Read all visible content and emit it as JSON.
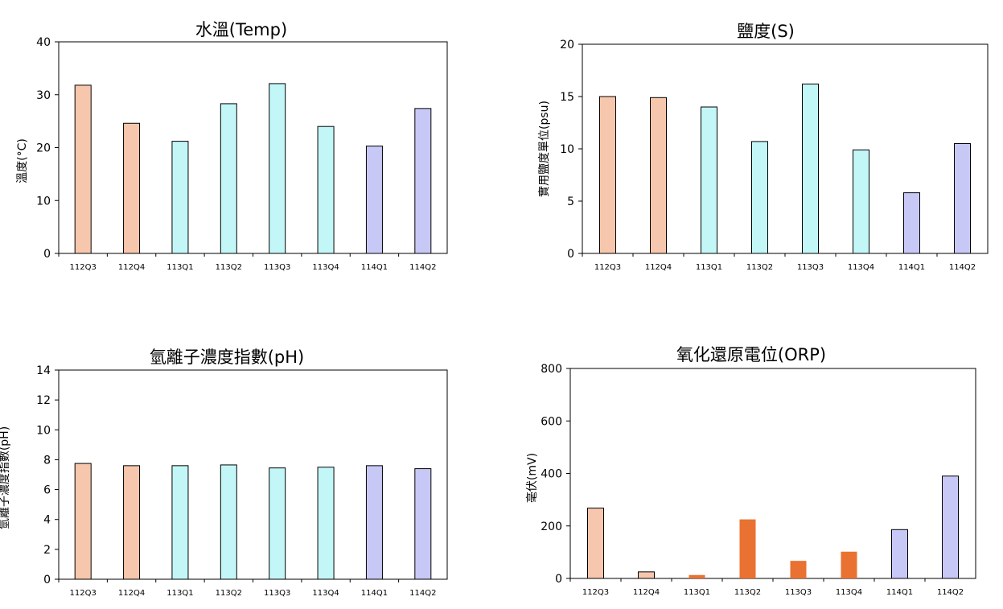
{
  "chart_data": [
    {
      "type": "bar",
      "title": "水溫(Temp)",
      "ylabel": "溫度(°C)",
      "xlabel": "",
      "categories": [
        "112Q3",
        "112Q4",
        "113Q1",
        "113Q2",
        "113Q3",
        "113Q4",
        "114Q1",
        "114Q2"
      ],
      "values": [
        31.8,
        24.6,
        21.2,
        28.3,
        32.1,
        24.0,
        20.3,
        27.4
      ],
      "ylim": [
        0,
        40
      ],
      "yticks": [
        0,
        10,
        20,
        30,
        40
      ],
      "colors": [
        "#f6c6ad",
        "#f6c6ad",
        "#c3f6f6",
        "#c3f6f6",
        "#c3f6f6",
        "#c3f6f6",
        "#c8c8f7",
        "#c8c8f7"
      ],
      "outlined": [
        true,
        true,
        true,
        true,
        true,
        true,
        true,
        true
      ]
    },
    {
      "type": "bar",
      "title": "鹽度(S)",
      "ylabel": "實用鹽度單位(psu)",
      "xlabel": "",
      "categories": [
        "112Q3",
        "112Q4",
        "113Q1",
        "113Q2",
        "113Q3",
        "113Q4",
        "114Q1",
        "114Q2"
      ],
      "values": [
        15.0,
        14.9,
        14.0,
        10.7,
        16.2,
        9.9,
        5.8,
        10.5
      ],
      "ylim": [
        0,
        20
      ],
      "yticks": [
        0,
        5,
        10,
        15,
        20
      ],
      "colors": [
        "#f6c6ad",
        "#f6c6ad",
        "#c3f6f6",
        "#c3f6f6",
        "#c3f6f6",
        "#c3f6f6",
        "#c8c8f7",
        "#c8c8f7"
      ],
      "outlined": [
        true,
        true,
        true,
        true,
        true,
        true,
        true,
        true
      ]
    },
    {
      "type": "bar",
      "title": "氫離子濃度指數(pH)",
      "ylabel": "氫離子濃度指數(pH)",
      "xlabel": "",
      "categories": [
        "112Q3",
        "112Q4",
        "113Q1",
        "113Q2",
        "113Q3",
        "113Q4",
        "114Q1",
        "114Q2"
      ],
      "values": [
        7.75,
        7.6,
        7.6,
        7.65,
        7.45,
        7.5,
        7.6,
        7.4
      ],
      "ylim": [
        0,
        14
      ],
      "yticks": [
        0,
        2,
        4,
        6,
        8,
        10,
        12,
        14
      ],
      "colors": [
        "#f6c6ad",
        "#f6c6ad",
        "#c3f6f6",
        "#c3f6f6",
        "#c3f6f6",
        "#c3f6f6",
        "#c8c8f7",
        "#c8c8f7"
      ],
      "outlined": [
        true,
        true,
        true,
        true,
        true,
        true,
        true,
        true
      ]
    },
    {
      "type": "bar",
      "title": "氧化還原電位(ORP)",
      "ylabel": "毫伏(mV)",
      "xlabel": "",
      "categories": [
        "112Q3",
        "112Q4",
        "113Q1",
        "113Q2",
        "113Q3",
        "113Q4",
        "114Q1",
        "114Q2"
      ],
      "values": [
        268,
        25,
        13,
        225,
        67,
        102,
        186,
        390
      ],
      "ylim": [
        0,
        800
      ],
      "yticks": [
        0,
        200,
        400,
        600,
        800
      ],
      "colors": [
        "#f6c6ad",
        "#f6c6ad",
        "#e97132",
        "#e97132",
        "#e97132",
        "#e97132",
        "#c8c8f7",
        "#c8c8f7"
      ],
      "outlined": [
        true,
        true,
        false,
        false,
        false,
        false,
        true,
        true
      ]
    }
  ]
}
